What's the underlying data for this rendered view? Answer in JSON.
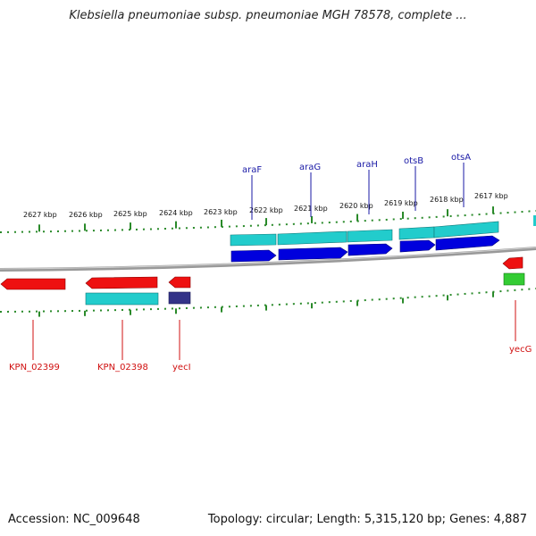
{
  "header": {
    "title": "Klebsiella pneumoniae subsp. pneumoniae MGH 78578, complete ..."
  },
  "footer": {
    "accession": "Accession: NC_009648",
    "stats": "Topology: circular; Length: 5,315,120 bp; Genes: 4,887"
  },
  "colors": {
    "backbone": "#888888",
    "ruler": "#2a8a2a",
    "top_label_line": "#1a1aa6",
    "bottom_label_line": "#d01010",
    "cds_forward": "#0000dd",
    "gene_forward": "#22cccc",
    "cds_reverse": "#ee1111",
    "gene_reverse_green": "#33cc33",
    "misc_feature": "#333388"
  },
  "ruler_labels": [
    "2627 kbp",
    "2626 kbp",
    "2625 kbp",
    "2624 kbp",
    "2623 kbp",
    "2622 kbp",
    "2621 kbp",
    "2620 kbp",
    "2619 kbp",
    "2618 kbp",
    "2617 kbp"
  ],
  "top_gene_labels": [
    "araF",
    "araG",
    "araH",
    "otsB",
    "otsA"
  ],
  "bottom_gene_labels": [
    "KPN_02399",
    "KPN_02398",
    "yecI",
    "yecG"
  ]
}
